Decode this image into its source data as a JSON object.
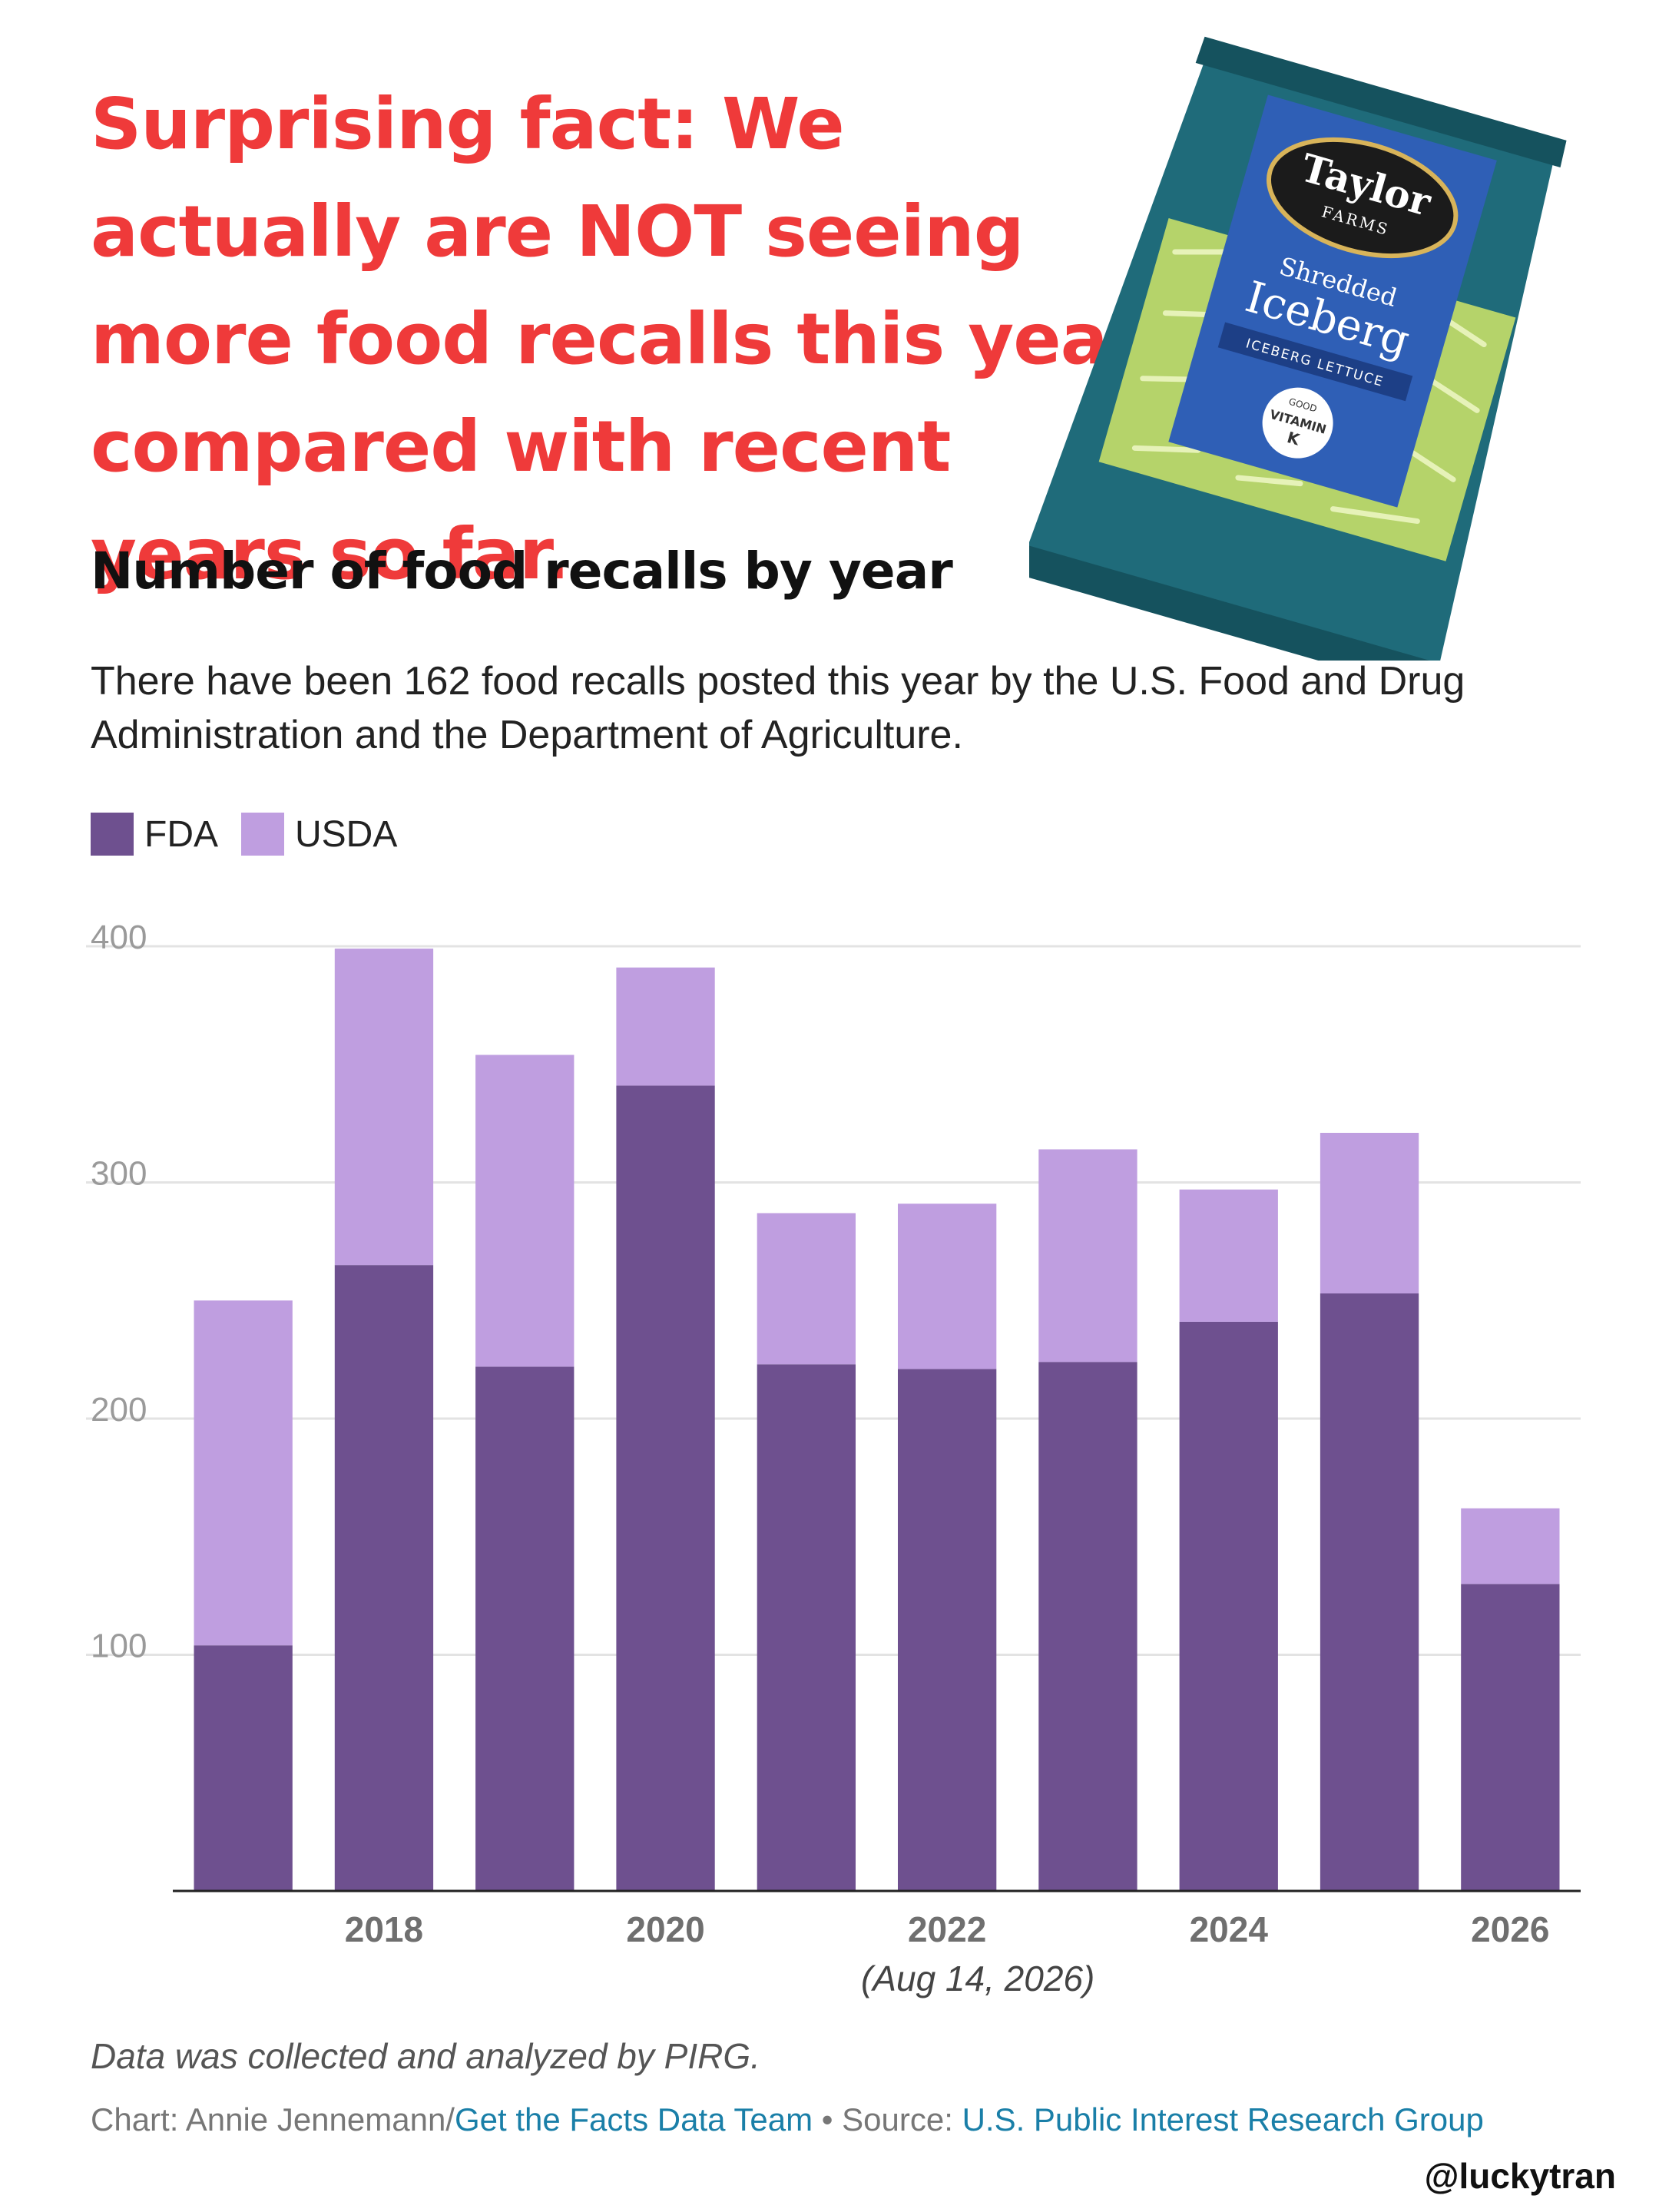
{
  "headline": "Surprising fact: We actually are NOT seeing more food recalls this year compared with recent years so far.",
  "product_image": {
    "brand_top": "Taylor",
    "brand_bottom": "FARMS",
    "product_line1": "Shredded",
    "product_line2": "Iceberg",
    "product_tag": "ICEBERG LETTUCE",
    "badge_small": "GOOD",
    "badge_main": "VITAMIN",
    "badge_letter": "K",
    "colors": {
      "bag": "#1f6b7a",
      "panel": "#2f5fb6",
      "lettuce": "#b5d36a"
    }
  },
  "chart_title": "Number of food recalls by year",
  "subtitle": "There have been 162 food recalls posted this year by the U.S. Food and Drug Administration and the Department of Agriculture.",
  "chart_data": {
    "type": "bar",
    "stacked": true,
    "categories": [
      "2017",
      "2018",
      "2019",
      "2020",
      "2021",
      "2022",
      "2023",
      "2024",
      "2025",
      "2026"
    ],
    "series": [
      {
        "name": "FDA",
        "color": "#6e508f",
        "values": [
          104,
          265,
          222,
          341,
          223,
          221,
          224,
          241,
          253,
          130
        ]
      },
      {
        "name": "USDA",
        "color": "#bf9ee0",
        "values": [
          146,
          134,
          132,
          50,
          64,
          70,
          90,
          56,
          68,
          32
        ]
      }
    ],
    "x_tick_labels": [
      "2018",
      "2020",
      "2022",
      "2024",
      "2026"
    ],
    "y_ticks": [
      "100",
      "200",
      "300",
      "400"
    ],
    "ylim": [
      0,
      400
    ],
    "x_note": "(Aug 14, 2026)",
    "grid": true,
    "legend_position": "top-left"
  },
  "footnote": "Data was collected and analyzed by PIRG.",
  "credit": {
    "chart_prefix": "Chart: Annie Jennemann/",
    "chart_team": "Get the Facts Data Team",
    "separator": " • Source: ",
    "source": "U.S. Public Interest Research Group"
  },
  "handle": "@luckytran"
}
